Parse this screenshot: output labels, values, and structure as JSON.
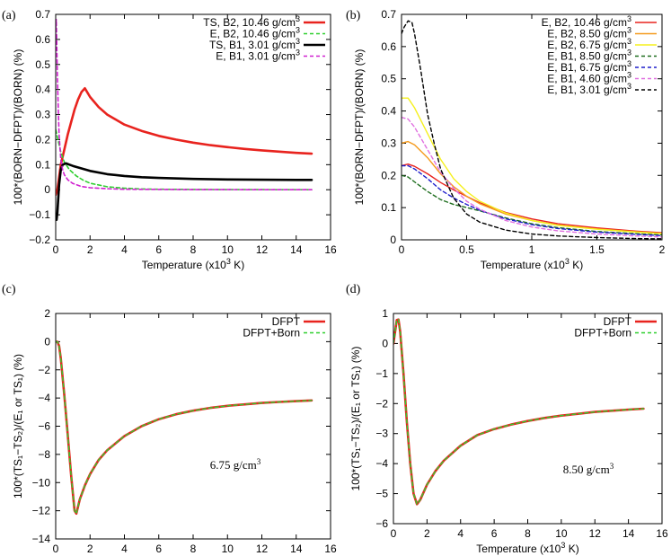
{
  "chart_data": [
    {
      "id": "a",
      "panel_label": "(a)",
      "type": "line",
      "xlabel": "Temperature (x10",
      "xlabel_sup": "3",
      "xlabel_tail": " K)",
      "ylabel": "100*(BORN−DFPT)/(BORN) (%)",
      "xlim": [
        0,
        16
      ],
      "ylim": [
        -0.2,
        0.7
      ],
      "xticks": [
        0,
        2,
        4,
        6,
        8,
        10,
        12,
        14,
        16
      ],
      "yticks": [
        -0.2,
        -0.1,
        0,
        0.1,
        0.2,
        0.3,
        0.4,
        0.5,
        0.6,
        0.7
      ],
      "ytick_labels": [
        "−0.2",
        "−0.1",
        "0",
        "0.1",
        "0.2",
        "0.3",
        "0.4",
        "0.5",
        "0.6",
        "0.7"
      ],
      "legend_position": "top-right",
      "annotation": "",
      "series": [
        {
          "name": "TS, B2, 10.46 g/cm",
          "name_sup": "3",
          "color": "#e8231e",
          "dash": "",
          "width": 2.6,
          "x": [
            0,
            0.1,
            0.2,
            0.3,
            0.5,
            0.7,
            0.9,
            1.1,
            1.3,
            1.5,
            1.7,
            2.0,
            2.5,
            3,
            4,
            5,
            6,
            7,
            8,
            9,
            10,
            11,
            12,
            13,
            14,
            14.9
          ],
          "y": [
            -0.02,
            0.0,
            0.05,
            0.1,
            0.16,
            0.22,
            0.27,
            0.32,
            0.36,
            0.39,
            0.405,
            0.37,
            0.33,
            0.3,
            0.26,
            0.235,
            0.215,
            0.2,
            0.188,
            0.178,
            0.17,
            0.163,
            0.157,
            0.152,
            0.147,
            0.144
          ]
        },
        {
          "name": "E, B2, 10.46 g/cm",
          "name_sup": "3",
          "color": "#2fcf2f",
          "dash": "4 3",
          "width": 1.6,
          "x": [
            0,
            0.1,
            0.2,
            0.3,
            0.5,
            0.8,
            1.2,
            1.6,
            2,
            3,
            4,
            5,
            6,
            8,
            10,
            12,
            14,
            14.9
          ],
          "y": [
            0.24,
            0.21,
            0.18,
            0.15,
            0.11,
            0.08,
            0.055,
            0.038,
            0.026,
            0.012,
            0.006,
            0.003,
            0.002,
            0.001,
            0.0005,
            0.0003,
            0.0002,
            0.0002
          ]
        },
        {
          "name": "TS, B1, 3.01 g/cm",
          "name_sup": "3",
          "color": "#000000",
          "dash": "",
          "width": 2.6,
          "x": [
            0,
            0.05,
            0.1,
            0.2,
            0.3,
            0.4,
            0.6,
            0.8,
            1,
            1.5,
            2,
            3,
            4,
            5,
            6,
            8,
            10,
            12,
            14,
            14.9
          ],
          "y": [
            -0.1,
            -0.12,
            -0.09,
            0.02,
            0.08,
            0.1,
            0.105,
            0.1,
            0.095,
            0.085,
            0.075,
            0.062,
            0.055,
            0.05,
            0.047,
            0.043,
            0.041,
            0.04,
            0.039,
            0.039
          ]
        },
        {
          "name": "E, B1, 3.01 g/cm",
          "name_sup": "3",
          "color": "#d020d0",
          "dash": "4 3",
          "width": 1.6,
          "x": [
            0,
            0.03,
            0.06,
            0.1,
            0.15,
            0.2,
            0.3,
            0.4,
            0.5,
            0.7,
            1,
            1.5,
            2,
            3,
            4,
            6,
            8,
            10,
            12,
            14,
            14.9
          ],
          "y": [
            0.64,
            0.68,
            0.6,
            0.45,
            0.32,
            0.22,
            0.12,
            0.08,
            0.06,
            0.04,
            0.025,
            0.013,
            0.008,
            0.004,
            0.002,
            0.001,
            0.0005,
            0.0003,
            0.0002,
            0.0001,
            0.0001
          ]
        }
      ]
    },
    {
      "id": "b",
      "panel_label": "(b)",
      "type": "line",
      "xlabel": "Temperature (x10",
      "xlabel_sup": "3",
      "xlabel_tail": " K)",
      "ylabel": "100*(BORN−DFPT)/(BORN) (%)",
      "xlim": [
        0,
        2
      ],
      "ylim": [
        0,
        0.7
      ],
      "xticks": [
        0,
        0.5,
        1,
        1.5,
        2
      ],
      "yticks": [
        0,
        0.1,
        0.2,
        0.3,
        0.4,
        0.5,
        0.6,
        0.7
      ],
      "ytick_labels": [
        "0",
        "0.1",
        "0.2",
        "0.3",
        "0.4",
        "0.5",
        "0.6",
        "0.7"
      ],
      "legend_position": "top-right",
      "annotation": "",
      "series": [
        {
          "name": "E, B2, 10.46 g/cm",
          "name_sup": "3",
          "color": "#e8231e",
          "dash": "",
          "width": 1.4,
          "x": [
            0,
            0.05,
            0.1,
            0.2,
            0.3,
            0.4,
            0.5,
            0.6,
            0.8,
            1,
            1.2,
            1.5,
            1.8,
            2
          ],
          "y": [
            0.23,
            0.235,
            0.228,
            0.205,
            0.178,
            0.155,
            0.135,
            0.115,
            0.085,
            0.065,
            0.05,
            0.037,
            0.027,
            0.022
          ]
        },
        {
          "name": "E, B2, 8.50 g/cm",
          "name_sup": "3",
          "color": "#f59b1e",
          "dash": "",
          "width": 1.4,
          "x": [
            0,
            0.05,
            0.1,
            0.2,
            0.3,
            0.4,
            0.5,
            0.6,
            0.8,
            1,
            1.2,
            1.5,
            1.8,
            2
          ],
          "y": [
            0.3,
            0.305,
            0.295,
            0.255,
            0.205,
            0.165,
            0.135,
            0.112,
            0.08,
            0.06,
            0.046,
            0.034,
            0.025,
            0.02
          ]
        },
        {
          "name": "E, B2, 6.75 g/cm",
          "name_sup": "3",
          "color": "#f5f01e",
          "dash": "",
          "width": 1.4,
          "x": [
            0,
            0.05,
            0.1,
            0.2,
            0.3,
            0.4,
            0.5,
            0.6,
            0.8,
            1,
            1.2,
            1.5,
            1.8,
            2
          ],
          "y": [
            0.44,
            0.44,
            0.41,
            0.33,
            0.25,
            0.19,
            0.15,
            0.12,
            0.083,
            0.06,
            0.045,
            0.033,
            0.024,
            0.019
          ]
        },
        {
          "name": "E, B1, 8.50 g/cm",
          "name_sup": "3",
          "color": "#1e6e1e",
          "dash": "4 3",
          "width": 1.4,
          "x": [
            0,
            0.05,
            0.1,
            0.2,
            0.3,
            0.4,
            0.5,
            0.6,
            0.8,
            1,
            1.2,
            1.5,
            1.8,
            2
          ],
          "y": [
            0.2,
            0.195,
            0.18,
            0.15,
            0.125,
            0.11,
            0.1,
            0.09,
            0.068,
            0.05,
            0.038,
            0.026,
            0.019,
            0.015
          ]
        },
        {
          "name": "E, B1, 6.75 g/cm",
          "name_sup": "3",
          "color": "#1e1ecc",
          "dash": "4 3",
          "width": 1.4,
          "x": [
            0,
            0.05,
            0.1,
            0.2,
            0.3,
            0.4,
            0.5,
            0.6,
            0.8,
            1,
            1.2,
            1.5,
            1.8,
            2
          ],
          "y": [
            0.23,
            0.23,
            0.22,
            0.19,
            0.155,
            0.13,
            0.11,
            0.092,
            0.065,
            0.047,
            0.035,
            0.024,
            0.017,
            0.013
          ]
        },
        {
          "name": "E, B1, 4.60 g/cm",
          "name_sup": "3",
          "color": "#e070e0",
          "dash": "4 3",
          "width": 1.4,
          "x": [
            0,
            0.05,
            0.1,
            0.2,
            0.3,
            0.4,
            0.5,
            0.6,
            0.8,
            1,
            1.2,
            1.5,
            1.8,
            2
          ],
          "y": [
            0.38,
            0.375,
            0.35,
            0.28,
            0.21,
            0.16,
            0.12,
            0.095,
            0.06,
            0.04,
            0.028,
            0.018,
            0.012,
            0.009
          ]
        },
        {
          "name": "E, B1, 3.01 g/cm",
          "name_sup": "3",
          "color": "#000000",
          "dash": "4 3",
          "width": 1.4,
          "x": [
            0,
            0.02,
            0.05,
            0.08,
            0.1,
            0.15,
            0.2,
            0.25,
            0.3,
            0.4,
            0.5,
            0.6,
            0.8,
            1,
            1.2,
            1.5,
            1.8,
            2
          ],
          "y": [
            0.64,
            0.66,
            0.68,
            0.675,
            0.64,
            0.52,
            0.39,
            0.3,
            0.22,
            0.13,
            0.08,
            0.055,
            0.03,
            0.018,
            0.012,
            0.007,
            0.004,
            0.003
          ]
        }
      ]
    },
    {
      "id": "c",
      "panel_label": "(c)",
      "type": "line",
      "xlabel": "Temperature (x10",
      "xlabel_sup": "3",
      "xlabel_tail": " K)",
      "ylabel": "100*(TS₁−TS₂)/(E₁ or TS₁) (%)",
      "xlim": [
        0,
        16
      ],
      "ylim": [
        -14,
        2
      ],
      "xticks": [
        0,
        2,
        4,
        6,
        8,
        10,
        12,
        14,
        16
      ],
      "yticks": [
        -14,
        -12,
        -10,
        -8,
        -6,
        -4,
        -2,
        0,
        2
      ],
      "ytick_labels": [
        "−14",
        "−12",
        "−10",
        "−8",
        "−6",
        "−4",
        "−2",
        "0",
        "2"
      ],
      "legend_position": "top-right",
      "annotation": "6.75 g/cm",
      "annotation_sup": "3",
      "series": [
        {
          "name": "DFPT",
          "name_sup": "",
          "color": "#e8231e",
          "dash": "",
          "width": 2.6,
          "x": [
            0,
            0.1,
            0.2,
            0.3,
            0.5,
            0.7,
            0.9,
            1.1,
            1.2,
            1.4,
            1.7,
            2,
            2.5,
            3,
            4,
            5,
            6,
            7,
            8,
            9,
            10,
            11,
            12,
            13,
            14,
            14.9
          ],
          "y": [
            0,
            0,
            -0.3,
            -1.2,
            -3.8,
            -6.6,
            -9.5,
            -12.0,
            -12.2,
            -11.2,
            -10.2,
            -9.4,
            -8.4,
            -7.7,
            -6.7,
            -6.0,
            -5.5,
            -5.15,
            -4.9,
            -4.7,
            -4.55,
            -4.45,
            -4.35,
            -4.28,
            -4.22,
            -4.17
          ]
        },
        {
          "name": "DFPT+Born",
          "name_sup": "",
          "color": "#2fcf2f",
          "dash": "4 3",
          "width": 1.4,
          "x": [
            0,
            0.1,
            0.2,
            0.3,
            0.5,
            0.7,
            0.9,
            1.1,
            1.2,
            1.4,
            1.7,
            2,
            2.5,
            3,
            4,
            5,
            6,
            7,
            8,
            9,
            10,
            11,
            12,
            13,
            14,
            14.9
          ],
          "y": [
            0,
            0,
            -0.3,
            -1.2,
            -3.8,
            -6.6,
            -9.5,
            -12.0,
            -12.2,
            -11.2,
            -10.2,
            -9.4,
            -8.4,
            -7.7,
            -6.7,
            -6.0,
            -5.5,
            -5.15,
            -4.9,
            -4.7,
            -4.55,
            -4.45,
            -4.35,
            -4.28,
            -4.22,
            -4.17
          ]
        }
      ]
    },
    {
      "id": "d",
      "panel_label": "(d)",
      "type": "line",
      "xlabel": "Temperature (x10",
      "xlabel_sup": "3",
      "xlabel_tail": " K)",
      "ylabel": "100*(TS₁−TS₂)/(E₁ or TS₁) (%)",
      "xlim": [
        0,
        16
      ],
      "ylim": [
        -6,
        1
      ],
      "xticks": [
        0,
        2,
        4,
        6,
        8,
        10,
        12,
        14,
        16
      ],
      "yticks": [
        -6,
        -5,
        -4,
        -3,
        -2,
        -1,
        0,
        1
      ],
      "ytick_labels": [
        "−6",
        "−5",
        "−4",
        "−3",
        "−2",
        "−1",
        "0",
        "1"
      ],
      "legend_position": "top-right",
      "annotation": "8.50 g/cm",
      "annotation_sup": "3",
      "series": [
        {
          "name": "DFPT",
          "name_sup": "",
          "color": "#e8231e",
          "dash": "",
          "width": 2.6,
          "x": [
            0,
            0.1,
            0.2,
            0.3,
            0.4,
            0.6,
            0.8,
            1.0,
            1.2,
            1.4,
            1.6,
            2,
            2.5,
            3,
            4,
            5,
            6,
            7,
            8,
            9,
            10,
            11,
            12,
            13,
            14,
            14.9
          ],
          "y": [
            0,
            0.4,
            0.78,
            0.8,
            0.4,
            -1.0,
            -2.6,
            -4.0,
            -5.0,
            -5.35,
            -5.2,
            -4.7,
            -4.25,
            -3.9,
            -3.4,
            -3.05,
            -2.85,
            -2.7,
            -2.58,
            -2.48,
            -2.4,
            -2.34,
            -2.28,
            -2.24,
            -2.2,
            -2.17
          ]
        },
        {
          "name": "DFPT+Born",
          "name_sup": "",
          "color": "#2fcf2f",
          "dash": "4 3",
          "width": 1.4,
          "x": [
            0,
            0.1,
            0.2,
            0.3,
            0.4,
            0.6,
            0.8,
            1.0,
            1.2,
            1.4,
            1.6,
            2,
            2.5,
            3,
            4,
            5,
            6,
            7,
            8,
            9,
            10,
            11,
            12,
            13,
            14,
            14.9
          ],
          "y": [
            0,
            0.4,
            0.78,
            0.8,
            0.4,
            -1.0,
            -2.6,
            -4.0,
            -5.0,
            -5.35,
            -5.2,
            -4.7,
            -4.25,
            -3.9,
            -3.4,
            -3.05,
            -2.85,
            -2.7,
            -2.58,
            -2.48,
            -2.4,
            -2.34,
            -2.28,
            -2.24,
            -2.2,
            -2.17
          ]
        }
      ]
    }
  ]
}
